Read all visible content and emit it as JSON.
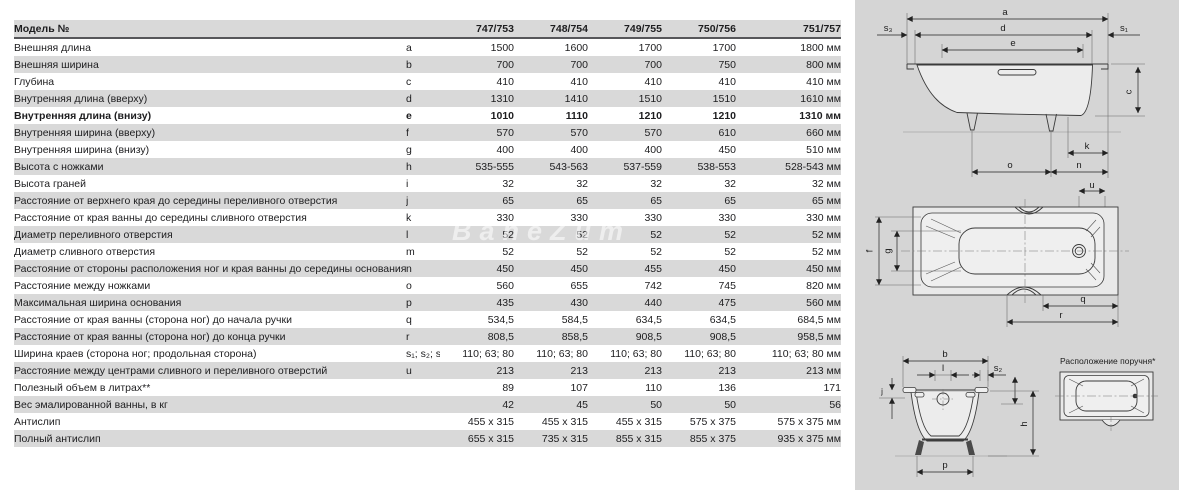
{
  "watermark": {
    "text": "BaneZum"
  },
  "table": {
    "header": {
      "label": "Модель №",
      "models": [
        "747/753",
        "748/754",
        "749/755",
        "750/756",
        "751/757"
      ]
    },
    "rows": [
      {
        "label": "Внешняя длина",
        "letter": "a",
        "values": [
          "1500",
          "1600",
          "1700",
          "1700",
          "1800 мм"
        ],
        "bold": false
      },
      {
        "label": "Внешняя ширина",
        "letter": "b",
        "values": [
          "700",
          "700",
          "700",
          "750",
          "800 мм"
        ],
        "bold": false
      },
      {
        "label": "Глубина",
        "letter": "c",
        "values": [
          "410",
          "410",
          "410",
          "410",
          "410 мм"
        ],
        "bold": false
      },
      {
        "label": "Внутренняя длина (вверху)",
        "letter": "d",
        "values": [
          "1310",
          "1410",
          "1510",
          "1510",
          "1610 мм"
        ],
        "bold": false
      },
      {
        "label": "Внутренняя длина (внизу)",
        "letter": "e",
        "values": [
          "1010",
          "1110",
          "1210",
          "1210",
          "1310 мм"
        ],
        "bold": true
      },
      {
        "label": "Внутренняя ширина (вверху)",
        "letter": "f",
        "values": [
          "570",
          "570",
          "570",
          "610",
          "660 мм"
        ],
        "bold": false
      },
      {
        "label": "Внутренняя ширина (внизу)",
        "letter": "g",
        "values": [
          "400",
          "400",
          "400",
          "450",
          "510 мм"
        ],
        "bold": false
      },
      {
        "label": "Высота с ножками",
        "letter": "h",
        "values": [
          "535-555",
          "543-563",
          "537-559",
          "538-553",
          "528-543 мм"
        ],
        "bold": false
      },
      {
        "label": "Высота граней",
        "letter": "i",
        "values": [
          "32",
          "32",
          "32",
          "32",
          "32 мм"
        ],
        "bold": false
      },
      {
        "label": "Расстояние от верхнего края до середины переливного отверстия",
        "letter": "j",
        "values": [
          "65",
          "65",
          "65",
          "65",
          "65 мм"
        ],
        "bold": false
      },
      {
        "label": "Расстояние от края ванны до середины сливного отверстия",
        "letter": "k",
        "values": [
          "330",
          "330",
          "330",
          "330",
          "330 мм"
        ],
        "bold": false
      },
      {
        "label": "Диаметр переливного отверстия",
        "letter": "l",
        "values": [
          "52",
          "52",
          "52",
          "52",
          "52 мм"
        ],
        "bold": false
      },
      {
        "label": "Диаметр сливного отверстия",
        "letter": "m",
        "values": [
          "52",
          "52",
          "52",
          "52",
          "52 мм"
        ],
        "bold": false
      },
      {
        "label": "Расстояние от стороны расположения ног и края ванны до середины основания",
        "letter": "n",
        "values": [
          "450",
          "450",
          "455",
          "450",
          "450 мм"
        ],
        "bold": false
      },
      {
        "label": "Расстояние между ножками",
        "letter": "o",
        "values": [
          "560",
          "655",
          "742",
          "745",
          "820 мм"
        ],
        "bold": false
      },
      {
        "label": "Максимальная ширина основания",
        "letter": "p",
        "values": [
          "435",
          "430",
          "440",
          "475",
          "560 мм"
        ],
        "bold": false
      },
      {
        "label": "Расстояние от края ванны (сторона ног) до начала ручки",
        "letter": "q",
        "values": [
          "534,5",
          "584,5",
          "634,5",
          "634,5",
          "684,5 мм"
        ],
        "bold": false
      },
      {
        "label": "Расстояние от края ванны (сторона ног) до конца ручки",
        "letter": "r",
        "values": [
          "808,5",
          "858,5",
          "908,5",
          "908,5",
          "958,5 мм"
        ],
        "bold": false
      },
      {
        "label": "Ширина краев (сторона ног; продольная сторона)",
        "letter": "s₁; s₂; s₃",
        "values": [
          "110; 63; 80",
          "110; 63; 80",
          "110; 63; 80",
          "110; 63; 80",
          "110; 63; 80 мм"
        ],
        "bold": false
      },
      {
        "label": "Расстояние между центрами сливного и переливного отверстий",
        "letter": "u",
        "values": [
          "213",
          "213",
          "213",
          "213",
          "213 мм"
        ],
        "bold": false
      },
      {
        "label": "Полезный объем в литрах**",
        "letter": "",
        "values": [
          "89",
          "107",
          "110",
          "136",
          "171"
        ],
        "bold": false
      },
      {
        "label": "Вес эмалированной ванны, в кг",
        "letter": "",
        "values": [
          "42",
          "45",
          "50",
          "50",
          "56"
        ],
        "bold": false
      },
      {
        "label": "Антислип",
        "letter": "",
        "values": [
          "455 x 315",
          "455 x 315",
          "455 x 315",
          "575 x 375",
          "575 x 375 мм"
        ],
        "bold": false
      },
      {
        "label": "Полный антислип",
        "letter": "",
        "values": [
          "655 x 315",
          "735 x 315",
          "855 x 315",
          "855 x 375",
          "935 x 375 мм"
        ],
        "bold": false
      }
    ]
  },
  "diagrams": {
    "side_view": {
      "labels": {
        "a": "a",
        "d": "d",
        "e": "e",
        "s3": "s₃",
        "s1": "s₁",
        "c": "c",
        "k": "k",
        "o": "o",
        "n": "n"
      }
    },
    "top_view": {
      "labels": {
        "u": "u",
        "f": "f",
        "g": "g",
        "q": "q",
        "r": "r"
      }
    },
    "end_view": {
      "labels": {
        "b": "b",
        "l": "l",
        "s2": "s₂",
        "j": "j",
        "h": "h",
        "p": "p"
      }
    },
    "handle_view": {
      "title": "Расположение поручня*"
    }
  }
}
